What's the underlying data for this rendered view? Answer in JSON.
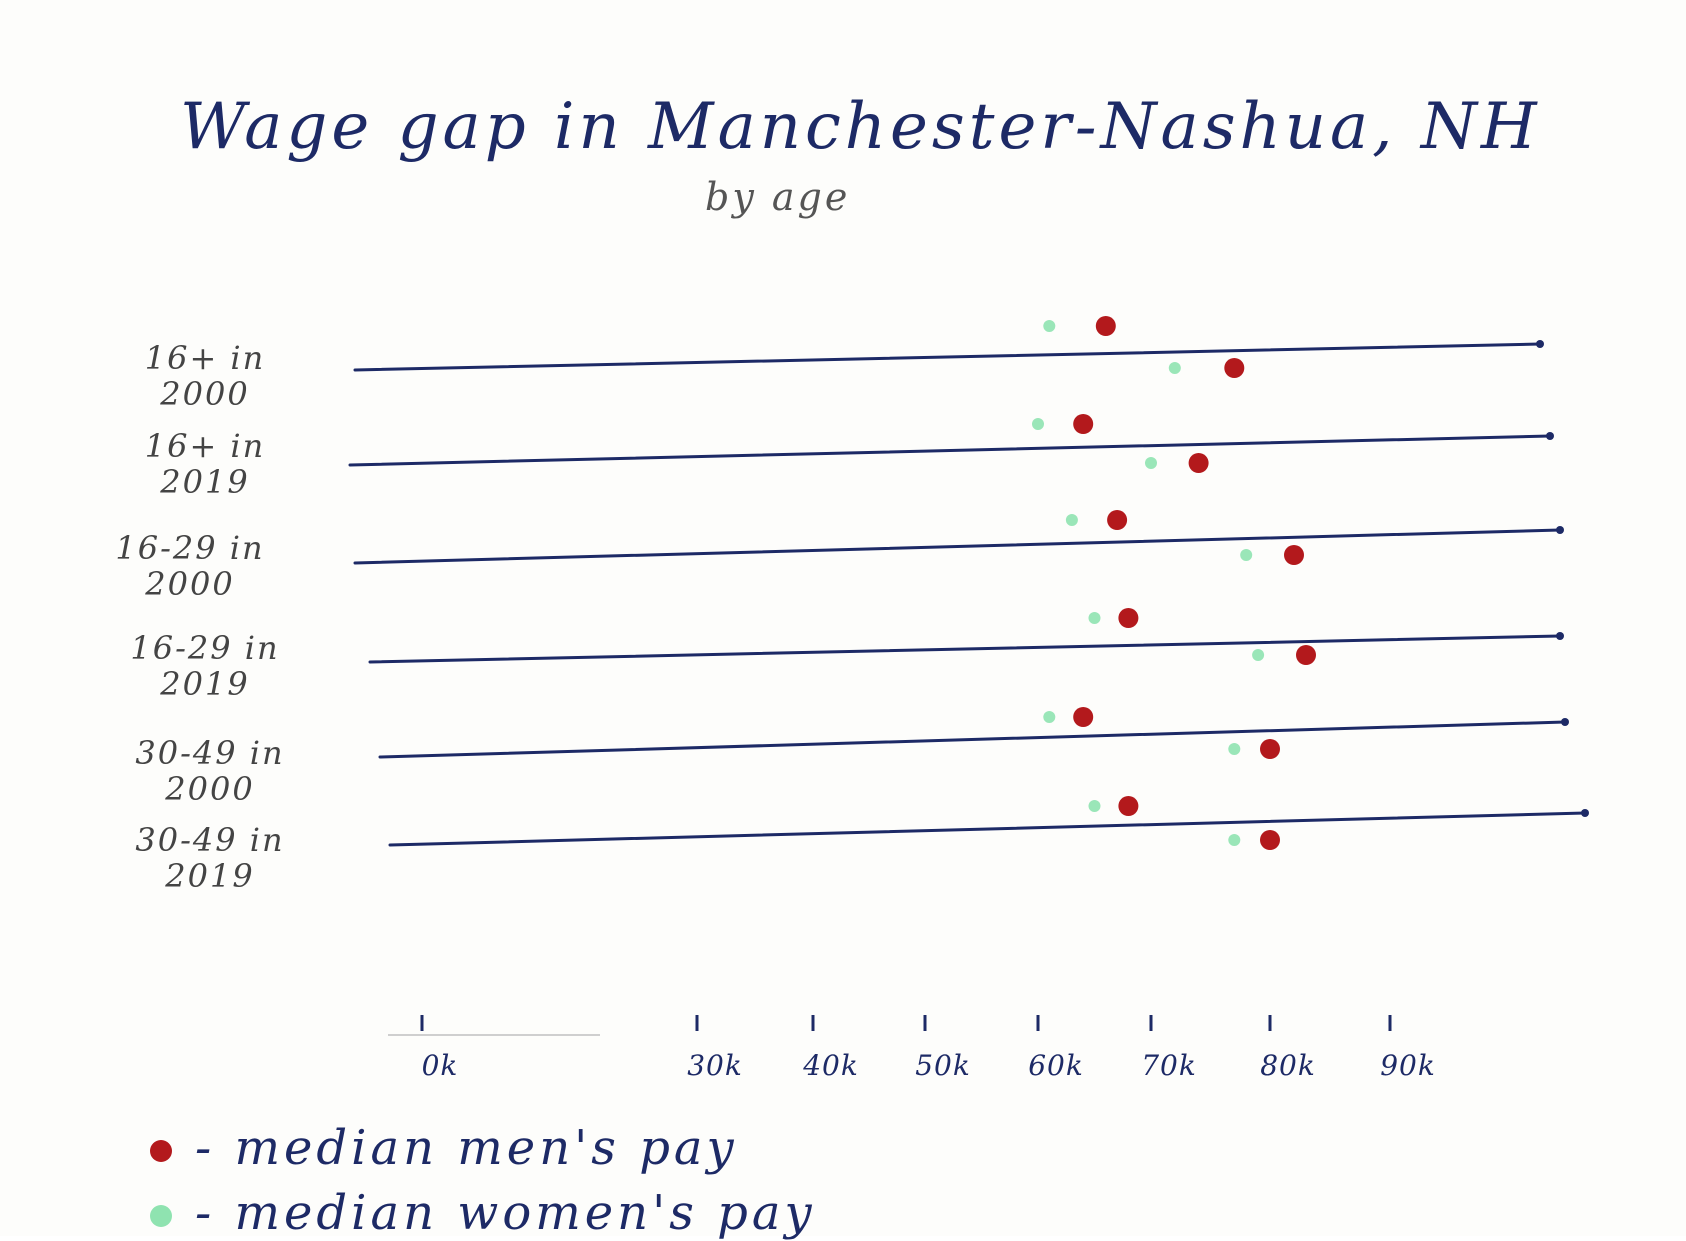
{
  "chart_data": {
    "type": "scatter",
    "title": "Wage gap in Manchester-Nashua, NH",
    "subtitle": "by age",
    "x_ticks": [
      "0k",
      "30k",
      "40k",
      "50k",
      "60k",
      "70k",
      "80k",
      "90k"
    ],
    "rows": [
      {
        "label_line1": "16+ in",
        "label_line2": "2000",
        "points": [
          {
            "series": "women",
            "value": 61
          },
          {
            "series": "men",
            "value": 66
          },
          {
            "series": "women",
            "value": 72
          },
          {
            "series": "men",
            "value": 77
          }
        ]
      },
      {
        "label_line1": "16+ in",
        "label_line2": "2019",
        "points": [
          {
            "series": "women",
            "value": 60
          },
          {
            "series": "men",
            "value": 64
          },
          {
            "series": "women",
            "value": 70
          },
          {
            "series": "men",
            "value": 74
          }
        ]
      },
      {
        "label_line1": "16-29 in",
        "label_line2": "2000",
        "points": [
          {
            "series": "women",
            "value": 63
          },
          {
            "series": "men",
            "value": 67
          },
          {
            "series": "women",
            "value": 78
          },
          {
            "series": "men",
            "value": 82
          }
        ]
      },
      {
        "label_line1": "16-29 in",
        "label_line2": "2019",
        "points": [
          {
            "series": "women",
            "value": 65
          },
          {
            "series": "men",
            "value": 68
          },
          {
            "series": "women",
            "value": 79
          },
          {
            "series": "men",
            "value": 83
          }
        ]
      },
      {
        "label_line1": "30-49 in",
        "label_line2": "2000",
        "points": [
          {
            "series": "women",
            "value": 61
          },
          {
            "series": "men",
            "value": 64
          },
          {
            "series": "women",
            "value": 77
          },
          {
            "series": "men",
            "value": 80
          }
        ]
      },
      {
        "label_line1": "30-49 in",
        "label_line2": "2019",
        "points": [
          {
            "series": "women",
            "value": 65
          },
          {
            "series": "men",
            "value": 68
          },
          {
            "series": "women",
            "value": 77
          },
          {
            "series": "men",
            "value": 80
          }
        ]
      }
    ],
    "series": [
      {
        "key": "men",
        "name": "median men's pay",
        "color": "#b3191c"
      },
      {
        "key": "women",
        "name": "median women's pay",
        "color": "#8fe3b0"
      }
    ],
    "legend": [
      {
        "text": "- median men's pay",
        "color": "#b3191c"
      },
      {
        "text": "- median women's pay",
        "color": "#8fe3b0"
      }
    ],
    "line_color": "#1d2a66",
    "legend_position": "bottom-left"
  }
}
